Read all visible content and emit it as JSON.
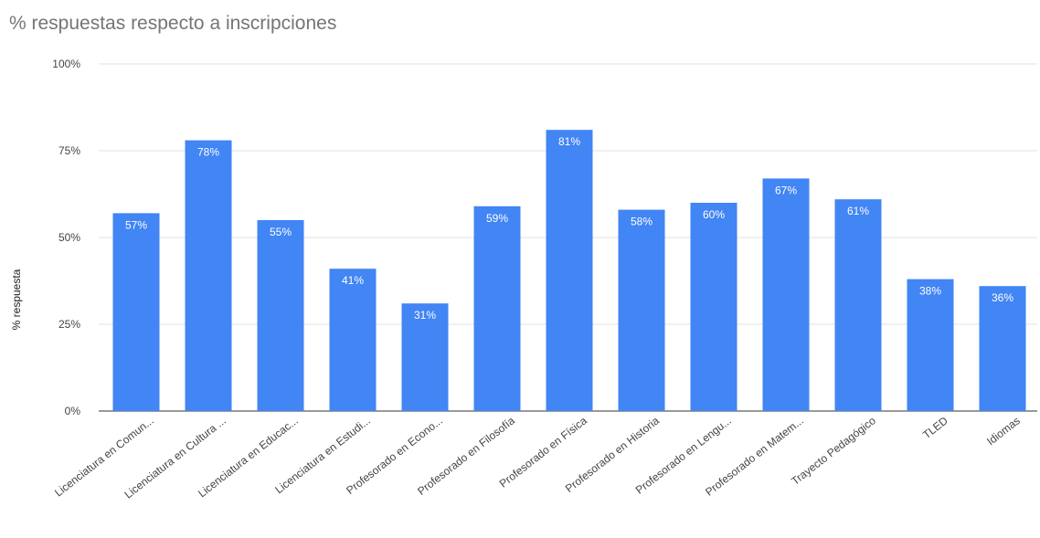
{
  "chart_data": {
    "type": "bar",
    "title": "% respuestas respecto a inscripciones",
    "ylabel": "% respuesta",
    "xlabel": "",
    "ylim": [
      0,
      100
    ],
    "yticks": [
      0,
      25,
      50,
      75,
      100
    ],
    "ytick_labels": [
      "0%",
      "25%",
      "50%",
      "75%",
      "100%"
    ],
    "grid": true,
    "legend": "none",
    "categories": [
      "Licenciatura en Comun...",
      "Licenciatura en Cultura ...",
      "Licenciatura en Educac...",
      "Licenciatura en Estudi...",
      "Profesorado en Econo...",
      "Profesorado en Filosofía",
      "Profesorado en Física",
      "Profesorado en Historia",
      "Profesorado en Lengu...",
      "Profesorado en Matem...",
      "Trayecto Pedagógico",
      "TLED",
      "Idiomas"
    ],
    "values": [
      57,
      78,
      55,
      41,
      31,
      59,
      81,
      58,
      60,
      67,
      61,
      38,
      36
    ],
    "data_labels": [
      "57%",
      "78%",
      "55%",
      "41%",
      "31%",
      "59%",
      "81%",
      "58%",
      "60%",
      "67%",
      "61%",
      "38%",
      "36%"
    ],
    "bar_color": "#4285f4",
    "grid_color": "#e0e0e0"
  }
}
